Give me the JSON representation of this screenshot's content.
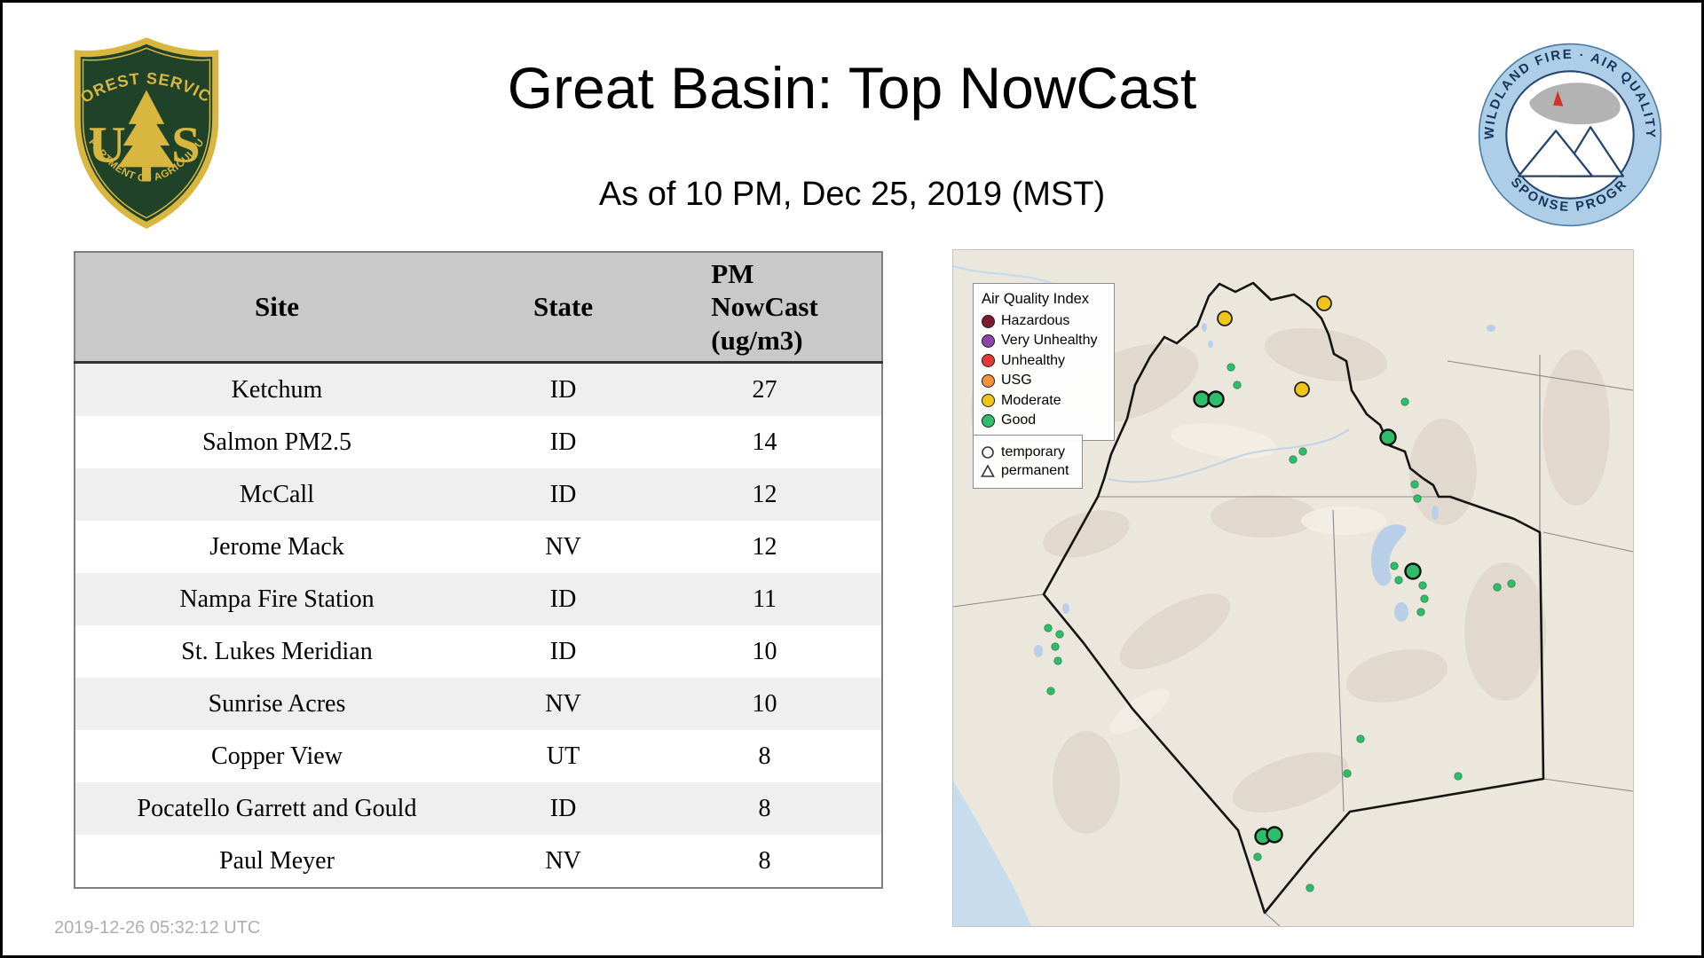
{
  "page": {
    "title": "Great Basin: Top NowCast",
    "subtitle": "As of 10 PM, Dec 25, 2019 (MST)",
    "timestamp": "2019-12-26 05:32:12 UTC"
  },
  "logos": {
    "usfs": {
      "top_text": "FOREST SERVICE",
      "letter_u": "U",
      "letter_s": "S",
      "bottom_text": "DEPARTMENT OF AGRICULTURE"
    },
    "wfaqrp": {
      "top_text": "WILDLAND FIRE · AIR QUALITY",
      "bottom_text": "RESPONSE PROGRAM"
    }
  },
  "table": {
    "headers": [
      [
        "Site"
      ],
      [
        "State"
      ],
      [
        "PM",
        "NowCast",
        "(ug/m3)"
      ]
    ],
    "rows": [
      [
        "Ketchum",
        "ID",
        "27"
      ],
      [
        "Salmon PM2.5",
        "ID",
        "14"
      ],
      [
        "McCall",
        "ID",
        "12"
      ],
      [
        "Jerome Mack",
        "NV",
        "12"
      ],
      [
        "Nampa Fire Station",
        "ID",
        "11"
      ],
      [
        "St. Lukes Meridian",
        "ID",
        "10"
      ],
      [
        "Sunrise Acres",
        "NV",
        "10"
      ],
      [
        "Copper View",
        "UT",
        "8"
      ],
      [
        "Pocatello Garrett and Gould",
        "ID",
        "8"
      ],
      [
        "Paul Meyer",
        "NV",
        "8"
      ]
    ]
  },
  "map": {
    "legend": {
      "title": "Air Quality Index",
      "items": [
        {
          "label": "Hazardous",
          "color": "#7e1a2f"
        },
        {
          "label": "Very Unhealthy",
          "color": "#8e44ad"
        },
        {
          "label": "Unhealthy",
          "color": "#e53935"
        },
        {
          "label": "USG",
          "color": "#f5923e"
        },
        {
          "label": "Moderate",
          "color": "#f0c419"
        },
        {
          "label": "Good",
          "color": "#2ebd6b"
        }
      ]
    },
    "marker_legend": [
      {
        "label": "temporary",
        "symbol": "circle"
      },
      {
        "label": "permanent",
        "symbol": "triangle"
      }
    ],
    "marker_colors": {
      "good": "#2ebd6b",
      "moderate": "#f0c419"
    },
    "markers": {
      "moderate": [
        [
          306,
          77
        ],
        [
          418,
          60
        ],
        [
          393,
          157
        ]
      ],
      "good_large": [
        [
          280,
          168
        ],
        [
          296,
          168
        ],
        [
          490,
          211
        ],
        [
          518,
          362
        ],
        [
          349,
          661
        ],
        [
          362,
          659
        ]
      ],
      "good_small": [
        [
          313,
          132
        ],
        [
          320,
          152
        ],
        [
          509,
          171
        ],
        [
          383,
          236
        ],
        [
          394,
          227
        ],
        [
          520,
          264
        ],
        [
          523,
          280
        ],
        [
          497,
          356
        ],
        [
          502,
          372
        ],
        [
          529,
          378
        ],
        [
          531,
          393
        ],
        [
          527,
          408
        ],
        [
          613,
          380
        ],
        [
          629,
          376
        ],
        [
          107,
          426
        ],
        [
          120,
          433
        ],
        [
          115,
          447
        ],
        [
          118,
          463
        ],
        [
          110,
          497
        ],
        [
          459,
          551
        ],
        [
          444,
          590
        ],
        [
          569,
          593
        ],
        [
          343,
          684
        ],
        [
          402,
          719
        ]
      ]
    }
  }
}
